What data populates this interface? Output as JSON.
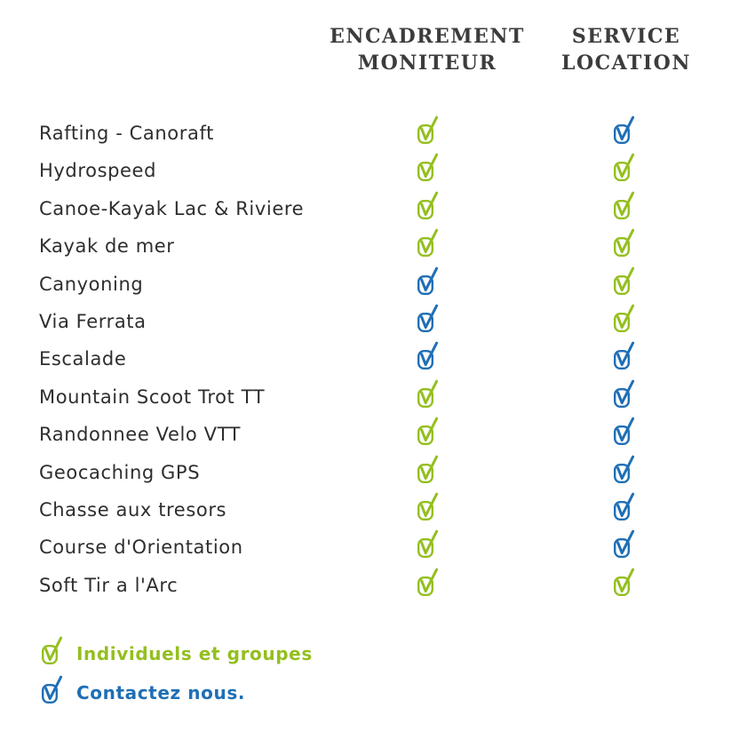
{
  "colors": {
    "green": "#94bf1f",
    "blue": "#1f6fb5",
    "header_text": "#3c3c3c",
    "body_text": "#2e2e2e"
  },
  "header": {
    "col1": {
      "line1": "ENCADREMENT",
      "line2": "MONITEUR"
    },
    "col2": {
      "line1": "SERVICE",
      "line2": "LOCATION"
    }
  },
  "rows": [
    {
      "activity": "Rafting - Canoraft",
      "encadrement": "green",
      "location": "blue"
    },
    {
      "activity": "Hydrospeed",
      "encadrement": "green",
      "location": "green"
    },
    {
      "activity": "Canoe-Kayak Lac & Riviere",
      "encadrement": "green",
      "location": "green"
    },
    {
      "activity": "Kayak de mer",
      "encadrement": "green",
      "location": "green"
    },
    {
      "activity": "Canyoning",
      "encadrement": "blue",
      "location": "green"
    },
    {
      "activity": "Via Ferrata",
      "encadrement": "blue",
      "location": "green"
    },
    {
      "activity": "Escalade",
      "encadrement": "blue",
      "location": "blue"
    },
    {
      "activity": "Mountain Scoot Trot TT",
      "encadrement": "green",
      "location": "blue"
    },
    {
      "activity": "Randonnee Velo VTT",
      "encadrement": "green",
      "location": "blue"
    },
    {
      "activity": "Geocaching GPS",
      "encadrement": "green",
      "location": "blue"
    },
    {
      "activity": "Chasse aux tresors",
      "encadrement": "green",
      "location": "blue"
    },
    {
      "activity": "Course d'Orientation",
      "encadrement": "green",
      "location": "blue"
    },
    {
      "activity": "Soft Tir a l'Arc",
      "encadrement": "green",
      "location": "green"
    }
  ],
  "legend": {
    "green": {
      "label": "Individuels et groupes",
      "icon": "check-icon"
    },
    "blue": {
      "label": "Contactez nous.",
      "icon": "check-icon"
    }
  }
}
